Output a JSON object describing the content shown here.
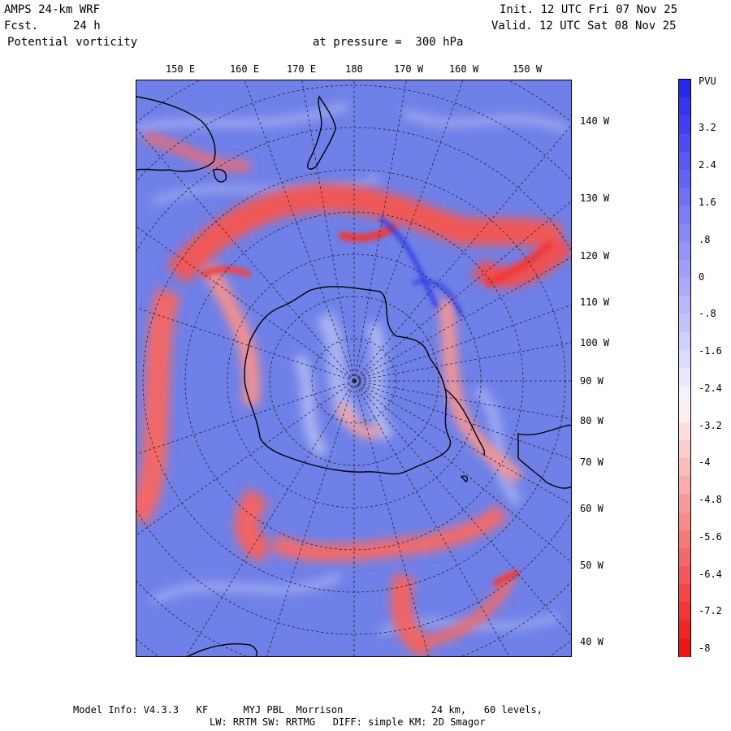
{
  "header": {
    "model": "AMPS 24-km WRF",
    "fcst_label": "Fcst.",
    "fcst_value": "24 h",
    "field": "Potential vorticity",
    "level": "at pressure =  300 hPa",
    "init": "Init. 12 UTC Fri 07 Nov 25",
    "valid": "Valid. 12 UTC Sat 08 Nov 25"
  },
  "map": {
    "projection": "polar stereographic (Southern Hemisphere)",
    "top_longitude_labels": [
      "150 E",
      "160 E",
      "170 E",
      "180",
      "170 W",
      "160 W",
      "150 W"
    ],
    "right_longitude_labels": [
      "140 W",
      "130 W",
      "120 W",
      "110 W",
      "100 W",
      "90 W",
      "80 W",
      "70 W",
      "60 W",
      "50 W",
      "40 W"
    ],
    "colors": {
      "positive": "#3030e8",
      "negative": "#f02020",
      "background": "#6f80e8",
      "coast": "#000000"
    }
  },
  "colorbar": {
    "unit": "PVU",
    "labels": [
      "3.2",
      "2.4",
      "1.6",
      ".8",
      "0",
      "-.8",
      "-1.6",
      "-2.4",
      "-3.2",
      "-4",
      "-4.8",
      "-5.6",
      "-6.4",
      "-7.2",
      "-8"
    ]
  },
  "footer": {
    "line1": "Model Info: V4.3.3   KF      MYJ PBL  Morrison               24 km,   60 levels,",
    "line2": "LW: RRTM SW: RRTMG   DIFF: simple KM: 2D Smagor"
  }
}
